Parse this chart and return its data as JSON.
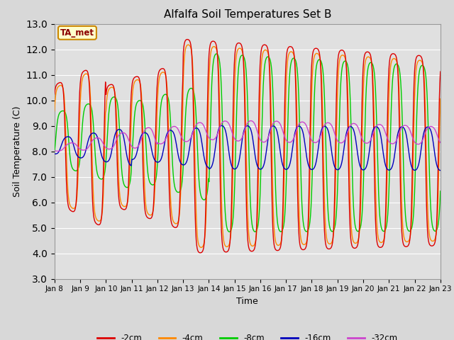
{
  "title": "Alfalfa Soil Temperatures Set B",
  "xlabel": "Time",
  "ylabel": "Soil Temperature (C)",
  "ylim": [
    3.0,
    13.0
  ],
  "yticks": [
    3.0,
    4.0,
    5.0,
    6.0,
    7.0,
    8.0,
    9.0,
    10.0,
    11.0,
    12.0,
    13.0
  ],
  "xtick_labels": [
    "Jan 8",
    "Jan 9",
    "Jan 10",
    "Jan 11",
    "Jan 12",
    "Jan 13",
    "Jan 14",
    "Jan 15",
    "Jan 16",
    "Jan 17",
    "Jan 18",
    "Jan 19",
    "Jan 20",
    "Jan 21",
    "Jan 22",
    "Jan 23"
  ],
  "bg_color": "#d8d8d8",
  "plot_bg_color": "#e0e0e0",
  "line_colors": {
    "-2cm": "#dd0000",
    "-4cm": "#ff8800",
    "-8cm": "#00cc00",
    "-16cm": "#0000bb",
    "-32cm": "#cc44cc"
  },
  "legend_label": "TA_met",
  "legend_box_color": "#ffffcc",
  "legend_box_border": "#cc8800"
}
